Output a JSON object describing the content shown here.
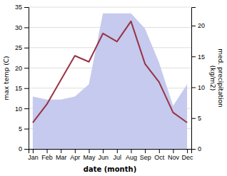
{
  "chart_data": {
    "type": "line",
    "categories": [
      "Jan",
      "Feb",
      "Mar",
      "Apr",
      "May",
      "Jun",
      "Jul",
      "Aug",
      "Sep",
      "Oct",
      "Nov",
      "Dec"
    ],
    "xlabel": "date (month)",
    "ylabel": "max temp (C)",
    "y2label": "med. precipitation\n(kg/m2)",
    "series": [
      {
        "type": "area",
        "axis": "y2",
        "color": "#c5caee",
        "values": [
          8.5,
          8.0,
          8.0,
          8.5,
          10.5,
          22.0,
          22.0,
          22.0,
          19.5,
          14.0,
          7.0,
          10.5
        ]
      },
      {
        "type": "line",
        "color": "#993344",
        "values": [
          6.5,
          11.0,
          17.0,
          23.0,
          21.5,
          28.5,
          26.5,
          31.5,
          21.0,
          16.5,
          9.0,
          6.5
        ]
      }
    ],
    "ylim": [
      0,
      35
    ],
    "yticks": [
      0,
      5,
      10,
      15,
      20,
      25,
      30,
      35
    ],
    "y2lim": [
      0,
      23
    ],
    "y2ticks": [
      0,
      5,
      10,
      15,
      20
    ],
    "grid": true
  }
}
